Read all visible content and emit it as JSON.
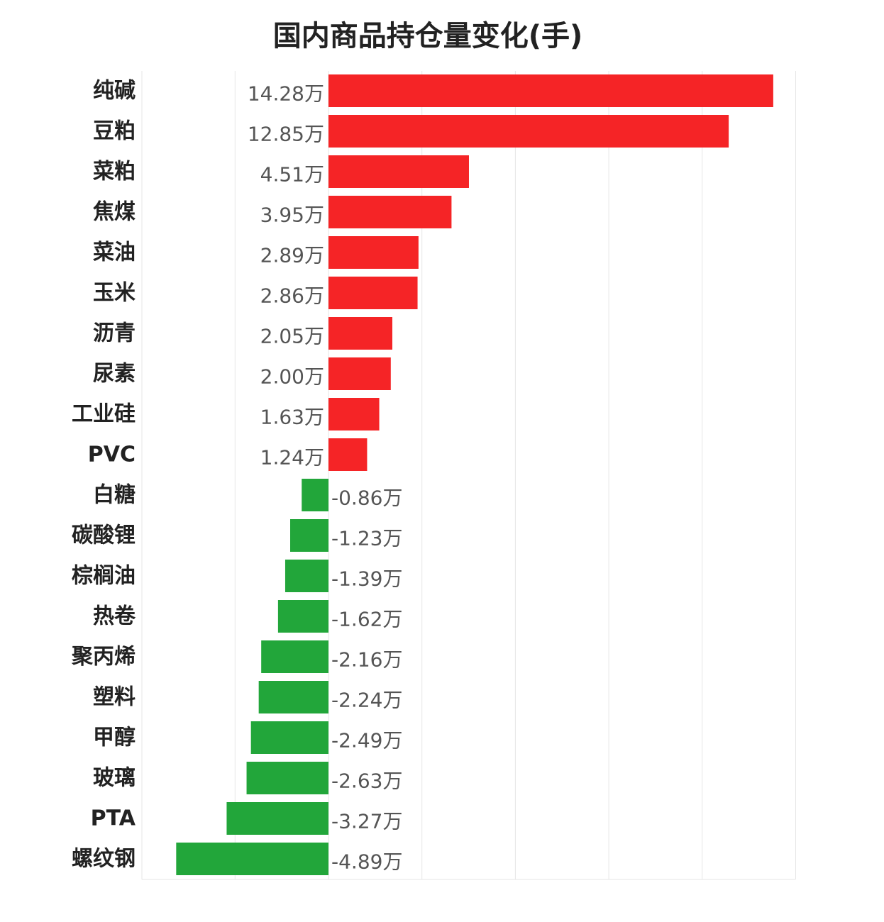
{
  "chart_data": {
    "type": "bar",
    "orientation": "horizontal",
    "title": "国内商品持仓量变化(手)",
    "unit_suffix": "万",
    "categories": [
      "纯碱",
      "豆粕",
      "菜粕",
      "焦煤",
      "菜油",
      "玉米",
      "沥青",
      "尿素",
      "工业硅",
      "PVC",
      "白糖",
      "碳酸锂",
      "棕榈油",
      "热卷",
      "聚丙烯",
      "塑料",
      "甲醇",
      "玻璃",
      "PTA",
      "螺纹钢"
    ],
    "values": [
      14.28,
      12.85,
      4.51,
      3.95,
      2.89,
      2.86,
      2.05,
      2.0,
      1.63,
      1.24,
      -0.86,
      -1.23,
      -1.39,
      -1.62,
      -2.16,
      -2.24,
      -2.49,
      -2.63,
      -3.27,
      -4.89
    ],
    "value_labels": [
      "14.28万",
      "12.85万",
      "4.51万",
      "3.95万",
      "2.89万",
      "2.86万",
      "2.05万",
      "2.00万",
      "1.63万",
      "1.24万",
      "-0.86万",
      "-1.23万",
      "-1.39万",
      "-1.62万",
      "-2.16万",
      "-2.24万",
      "-2.49万",
      "-2.63万",
      "-3.27万",
      "-4.89万"
    ],
    "xlim": [
      -6,
      15
    ],
    "grid": true,
    "legend": false,
    "colors": {
      "positive": "#f52426",
      "negative": "#22a63a",
      "grid": "#e6e6e6"
    }
  }
}
